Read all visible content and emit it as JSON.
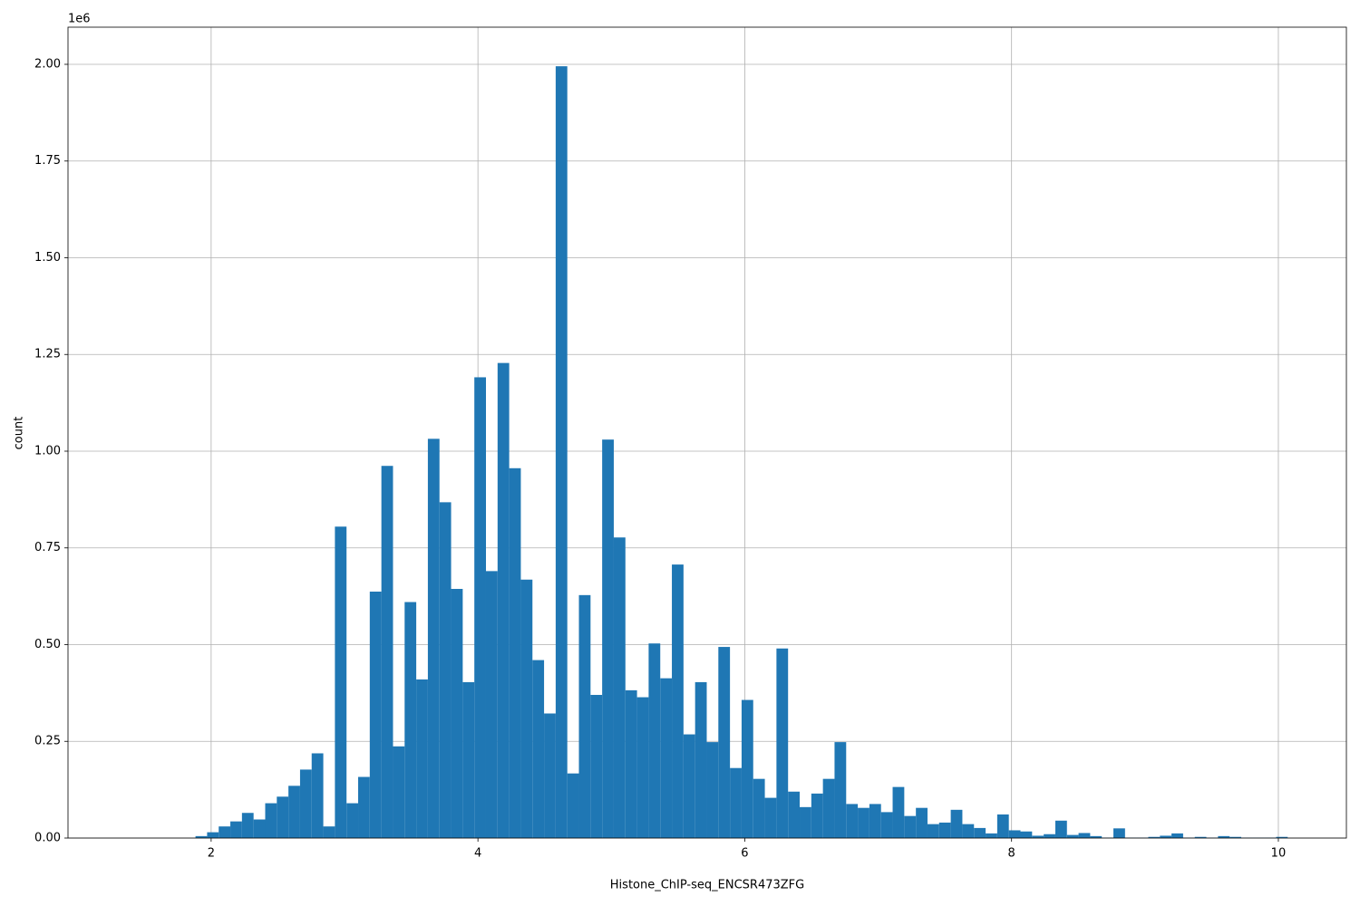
{
  "chart_data": {
    "type": "histogram",
    "xlabel": "Histone_ChIP-seq_ENCSR473ZFG",
    "ylabel": "count",
    "y_offset_label": "1e6",
    "color": "#1f77b4",
    "grid": true,
    "bins": [
      1.36,
      1.4471,
      1.5342,
      1.6213,
      1.7084,
      1.7955,
      1.8826,
      1.9697,
      2.0568,
      2.1439,
      2.231,
      2.3181,
      2.4052,
      2.4923,
      2.5794,
      2.6665,
      2.7536,
      2.8407,
      2.9278,
      3.0149,
      3.102,
      3.1891,
      3.2762,
      3.3633,
      3.4504,
      3.5375,
      3.6246,
      3.7117,
      3.7988,
      3.8859,
      3.973,
      4.0601,
      4.1472,
      4.2343,
      4.3214,
      4.4085,
      4.4956,
      4.5827,
      4.6698,
      4.7569,
      4.844,
      4.9311,
      5.0182,
      5.1053,
      5.1924,
      5.2795,
      5.3666,
      5.4537,
      5.5408,
      5.6279,
      5.715,
      5.8021,
      5.8892,
      5.9763,
      6.0634,
      6.1505,
      6.2376,
      6.3247,
      6.4118,
      6.4989,
      6.586,
      6.6731,
      6.7602,
      6.8473,
      6.9344,
      7.0215,
      7.1086,
      7.1957,
      7.2828,
      7.3699,
      7.457,
      7.5441,
      7.6312,
      7.7183,
      7.8054,
      7.8925,
      7.9796,
      8.0667,
      8.1538,
      8.2409,
      8.328,
      8.4151,
      8.5022,
      8.5893,
      8.6764,
      8.7635,
      8.8506,
      8.9377,
      9.0248,
      9.1119,
      9.199,
      9.2861,
      9.3732,
      9.4603,
      9.5474,
      9.6345,
      9.7216,
      9.8087,
      9.8958,
      9.9829,
      10.07
    ],
    "values": [
      0,
      0,
      0,
      0,
      0,
      0,
      5000,
      15000,
      30000,
      43000,
      65000,
      48000,
      90000,
      107000,
      135000,
      177000,
      219000,
      30000,
      805000,
      90000,
      158000,
      637000,
      962000,
      237000,
      610000,
      410000,
      1032000,
      868000,
      644000,
      403000,
      1191000,
      690000,
      1228000,
      956000,
      668000,
      460000,
      322000,
      1995000,
      167000,
      628000,
      370000,
      1030000,
      777000,
      382000,
      364000,
      503000,
      413000,
      707000,
      268000,
      403000,
      248000,
      494000,
      181000,
      357000,
      153000,
      104000,
      490000,
      120000,
      80000,
      115000,
      153000,
      248000,
      88000,
      78000,
      88000,
      67000,
      132000,
      57000,
      78000,
      36000,
      40000,
      73000,
      36000,
      26000,
      12000,
      61000,
      20000,
      17000,
      6000,
      10000,
      45000,
      8000,
      13000,
      5000,
      1000,
      25000,
      1000,
      1000,
      3000,
      6000,
      12000,
      1000,
      3000,
      1000,
      5000,
      3000,
      1000,
      1000,
      1000,
      3000
    ],
    "xlim": [
      0.927,
      10.51
    ],
    "xticks": [
      2,
      4,
      6,
      8,
      10
    ],
    "ylim": [
      0,
      2096000
    ],
    "yticks": [
      {
        "value": 0,
        "label": "0.00"
      },
      {
        "value": 250000,
        "label": "0.25"
      },
      {
        "value": 500000,
        "label": "0.50"
      },
      {
        "value": 750000,
        "label": "0.75"
      },
      {
        "value": 1000000,
        "label": "1.00"
      },
      {
        "value": 1250000,
        "label": "1.25"
      },
      {
        "value": 1500000,
        "label": "1.50"
      },
      {
        "value": 1750000,
        "label": "1.75"
      },
      {
        "value": 2000000,
        "label": "2.00"
      }
    ]
  }
}
